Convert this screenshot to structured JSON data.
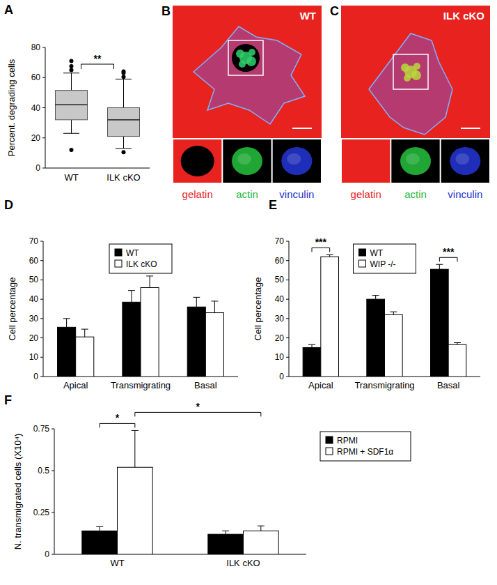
{
  "panel_letters": [
    "A",
    "B",
    "C",
    "D",
    "E",
    "F"
  ],
  "micrographs": [
    {
      "title": "WT",
      "channels": [
        "gelatin",
        "actin",
        "vinculin"
      ],
      "colors": [
        "#e8231f",
        "#22b83a",
        "#2233cc"
      ]
    },
    {
      "title": "ILK  cKO",
      "channels": [
        "gelatin",
        "actin",
        "vinculin"
      ],
      "colors": [
        "#e8231f",
        "#22b83a",
        "#2233cc"
      ]
    }
  ],
  "chart_data": [
    {
      "type": "box",
      "categories": [
        "WT",
        "ILK cKO"
      ],
      "ylabel": "Percent. degrading cells",
      "ylim": [
        0,
        80
      ],
      "yticks": [
        0,
        20,
        40,
        60,
        80
      ],
      "color": "#c8c8c8",
      "boxes": [
        {
          "whisker_low": 23,
          "q1": 32,
          "median": 42,
          "q3": 51.5,
          "whisker_high": 63,
          "outliers": [
            65,
            67.5,
            71,
            12
          ]
        },
        {
          "whisker_low": 13,
          "q1": 21,
          "median": 32,
          "q3": 40,
          "whisker_high": 59,
          "outliers": [
            60.5,
            63,
            64,
            10.5
          ]
        }
      ],
      "annotations": [
        {
          "text": "**",
          "categories": [
            0,
            1
          ]
        }
      ]
    },
    {
      "type": "bar",
      "categories": [
        "Apical",
        "Transmigrating",
        "Basal"
      ],
      "ylabel": "Cell percentage",
      "ylim": [
        0,
        70
      ],
      "yticks": [
        0,
        10,
        20,
        30,
        40,
        50,
        60,
        70
      ],
      "legend": "top",
      "series": [
        {
          "name": "WT",
          "color": "#000000",
          "values": [
            25.5,
            38.5,
            36
          ],
          "errors": [
            4.5,
            6,
            5
          ]
        },
        {
          "name": "ILK cKO",
          "color": "#ffffff",
          "values": [
            20.5,
            46,
            33
          ],
          "errors": [
            4,
            6,
            6
          ]
        }
      ],
      "annotations": []
    },
    {
      "type": "bar",
      "categories": [
        "Apical",
        "Transmigrating",
        "Basal"
      ],
      "ylabel": "Cell percentage",
      "ylim": [
        0,
        70
      ],
      "yticks": [
        0,
        10,
        20,
        30,
        40,
        50,
        60,
        70
      ],
      "legend": "top",
      "series": [
        {
          "name": "WT",
          "color": "#000000",
          "values": [
            15,
            40,
            55.5
          ],
          "errors": [
            1.5,
            2,
            2.5
          ]
        },
        {
          "name": "WIP -/-",
          "color": "#ffffff",
          "values": [
            62,
            32,
            16.5
          ],
          "errors": [
            1,
            1.5,
            1
          ]
        }
      ],
      "annotations": [
        {
          "text": "***",
          "category": 0
        },
        {
          "text": "***",
          "category": 2
        }
      ]
    },
    {
      "type": "bar",
      "categories": [
        "WT",
        "ILK cKO"
      ],
      "ylabel": "N. transmigrated cells (X10⁴)",
      "ylim": [
        0,
        0.75
      ],
      "yticks": [
        0,
        0.25,
        0.5,
        0.75
      ],
      "legend": "top right",
      "series": [
        {
          "name": "RPMI",
          "color": "#000000",
          "values": [
            0.14,
            0.12
          ],
          "errors": [
            0.025,
            0.02
          ]
        },
        {
          "name": "RPMI + SDF1α",
          "color": "#ffffff",
          "values": [
            0.52,
            0.14
          ],
          "errors": [
            0.22,
            0.03
          ]
        }
      ],
      "annotations": [
        {
          "text": "*",
          "bars": [
            [
              0,
              0
            ],
            [
              1,
              0
            ]
          ]
        },
        {
          "text": "*",
          "bars": [
            [
              1,
              0
            ],
            [
              1,
              1
            ]
          ]
        }
      ]
    }
  ]
}
